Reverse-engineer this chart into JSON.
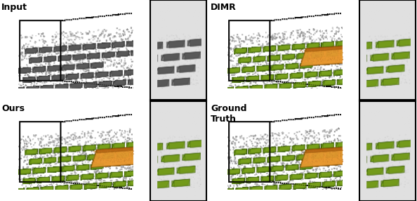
{
  "figsize": [
    5.94,
    2.86
  ],
  "dpi": 100,
  "bg_color": "#ffffff",
  "green_color": "#8ab820",
  "orange_color": "#e89830",
  "gray_pt_color": "#a8a8a8",
  "labels": [
    "Input",
    "DIMR",
    "Ours",
    "Ground\nTruth"
  ],
  "label_fontsize": 9,
  "label_fontweight": "bold",
  "panels": [
    {
      "scene": [
        0.0,
        0.505,
        0.355,
        0.495
      ],
      "zoom": [
        0.36,
        0.505,
        0.135,
        0.495
      ],
      "colored": false,
      "label": "Input",
      "label_lines": 1
    },
    {
      "scene": [
        0.502,
        0.505,
        0.355,
        0.495
      ],
      "zoom": [
        0.862,
        0.505,
        0.135,
        0.495
      ],
      "colored": true,
      "label": "DIMR",
      "label_lines": 1
    },
    {
      "scene": [
        0.0,
        0.0,
        0.355,
        0.495
      ],
      "zoom": [
        0.36,
        0.0,
        0.135,
        0.495
      ],
      "colored": true,
      "label": "Ours",
      "label_lines": 1
    },
    {
      "scene": [
        0.502,
        0.0,
        0.355,
        0.495
      ],
      "zoom": [
        0.862,
        0.0,
        0.135,
        0.495
      ],
      "colored": true,
      "label": "Ground\nTruth",
      "label_lines": 2
    }
  ]
}
